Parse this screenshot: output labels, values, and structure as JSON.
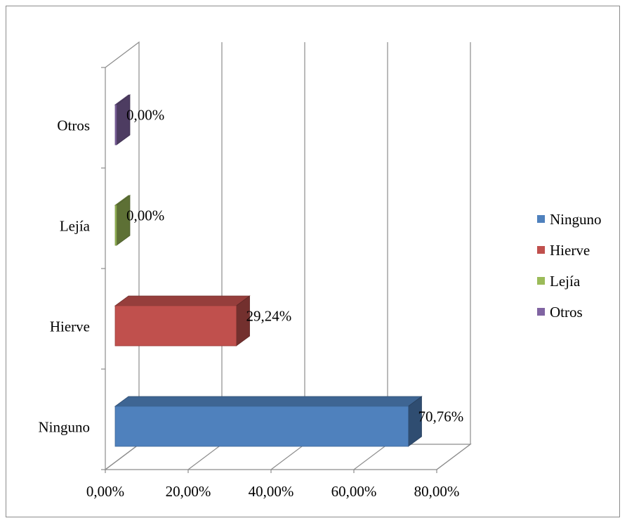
{
  "chart_data": {
    "type": "bar",
    "orientation": "horizontal",
    "style": "3d",
    "categories": [
      "Ninguno",
      "Hierve",
      "Lejía",
      "Otros"
    ],
    "values": [
      70.76,
      29.24,
      0.0,
      0.0
    ],
    "value_labels": [
      "70,76%",
      "29,24%",
      "0,00%",
      "0,00%"
    ],
    "colors": [
      "#4f81bd",
      "#c0504d",
      "#9bbb59",
      "#8064a2"
    ],
    "xlim": [
      0,
      80
    ],
    "xticks": [
      0,
      20,
      40,
      60,
      80
    ],
    "xtick_labels": [
      "0,00%",
      "20,00%",
      "40,00%",
      "60,00%",
      "80,00%"
    ],
    "grid": true,
    "legend": {
      "position": "right",
      "entries": [
        "Ninguno",
        "Hierve",
        "Lejía",
        "Otros"
      ]
    },
    "title": "",
    "xlabel": "",
    "ylabel": ""
  }
}
